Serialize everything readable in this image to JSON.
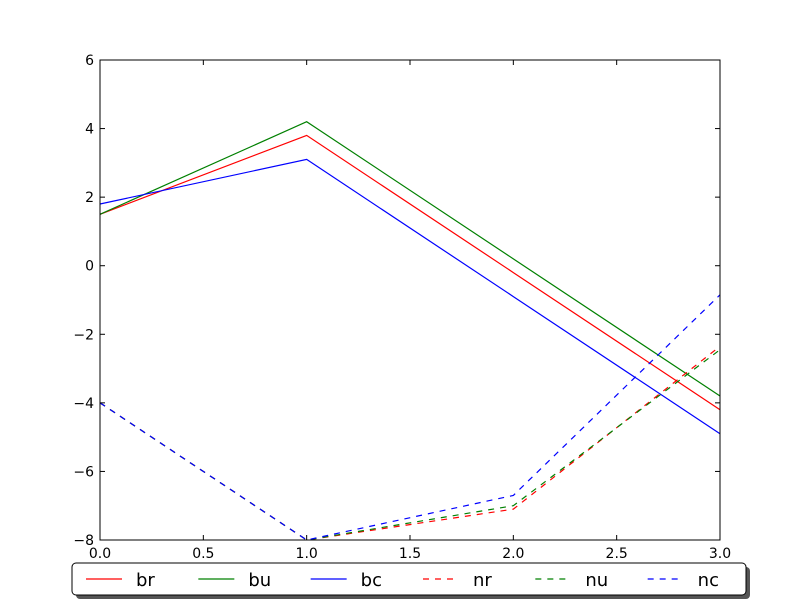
{
  "chart_data": {
    "type": "line",
    "title": "",
    "xlabel": "",
    "ylabel": "",
    "xlim": [
      0,
      3
    ],
    "ylim": [
      -8,
      6
    ],
    "xticks": [
      "0.0",
      "0.5",
      "1.0",
      "1.5",
      "2.0",
      "2.5",
      "3.0"
    ],
    "yticks": [
      "−8",
      "−6",
      "−4",
      "−2",
      "0",
      "2",
      "4",
      "6"
    ],
    "grid": false,
    "legend_placement": "bottom",
    "x": [
      0,
      1,
      2,
      3
    ],
    "series": [
      {
        "name": "br",
        "color": "#ff0000",
        "style": "solid",
        "values": [
          1.5,
          3.8,
          -0.2,
          -4.2
        ]
      },
      {
        "name": "bu",
        "color": "#008000",
        "style": "solid",
        "values": [
          1.5,
          4.2,
          0.2,
          -3.8
        ]
      },
      {
        "name": "bc",
        "color": "#0000ff",
        "style": "solid",
        "values": [
          1.8,
          3.1,
          -0.9,
          -4.9
        ]
      },
      {
        "name": "nr",
        "color": "#ff0000",
        "style": "dashed",
        "values": [
          -4.0,
          -8.0,
          -7.1,
          -2.35
        ]
      },
      {
        "name": "nu",
        "color": "#008000",
        "style": "dashed",
        "values": [
          -4.0,
          -8.0,
          -7.0,
          -2.45
        ]
      },
      {
        "name": "nc",
        "color": "#0000ff",
        "style": "dashed",
        "values": [
          -4.0,
          -8.0,
          -6.7,
          -0.85
        ]
      }
    ]
  }
}
